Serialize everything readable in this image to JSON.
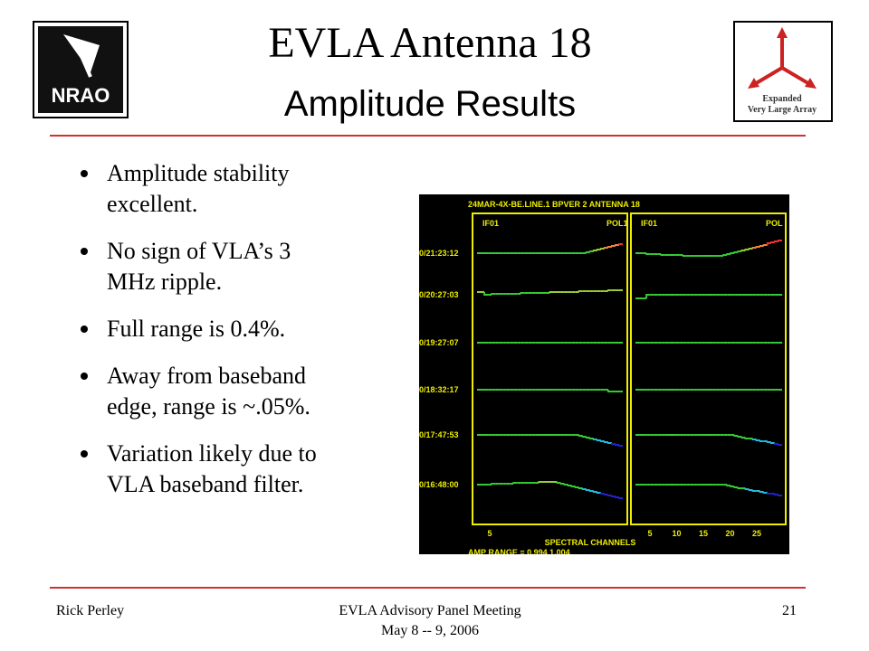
{
  "header": {
    "title": "EVLA Antenna 18",
    "subtitle": "Amplitude Results"
  },
  "logos": {
    "left": "NRAO",
    "right": [
      "Expanded",
      "Very Large Array"
    ]
  },
  "bullets": [
    [
      "Amplitude stability",
      "excellent."
    ],
    [
      "No sign of VLA’s 3",
      "MHz ripple."
    ],
    [
      "Full range is 0.4%."
    ],
    [
      "Away from baseband",
      "edge, range is ~.05%."
    ],
    [
      "Variation likely due to",
      "VLA baseband filter."
    ]
  ],
  "plot": {
    "header": "24MAR-4X-BE.LINE.1 BPVER 2 ANTENNA 18",
    "panels": [
      {
        "if": "IF01",
        "pol": "POL1"
      },
      {
        "if": "IF01",
        "pol": "POL"
      }
    ],
    "times": [
      "0/21:23:12",
      "0/20:27:03",
      "0/19:27:07",
      "0/18:32:17",
      "0/17:47:53",
      "0/16:48:00"
    ],
    "left_ticks": [
      5
    ],
    "right_ticks": [
      5,
      10,
      15,
      20,
      25
    ],
    "xlabel": "SPECTRAL CHANNELS",
    "range": "AMP RANGE = 0.994 1.004"
  },
  "footer": {
    "author": "Rick Perley",
    "event": [
      "EVLA Advisory Panel Meeting",
      "May 8 -- 9, 2006"
    ],
    "page": "21"
  }
}
